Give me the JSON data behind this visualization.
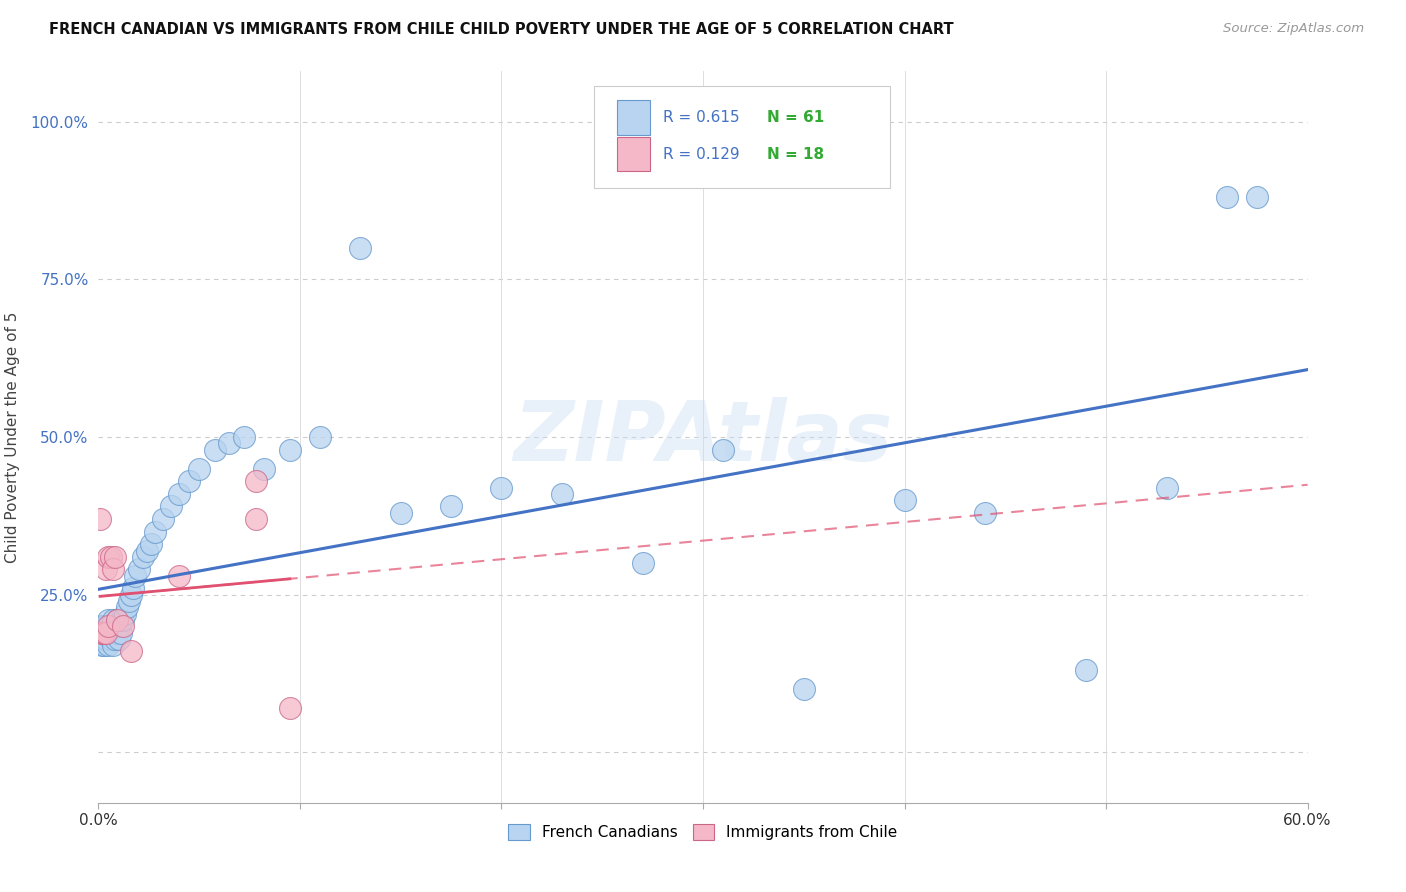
{
  "title": "FRENCH CANADIAN VS IMMIGRANTS FROM CHILE CHILD POVERTY UNDER THE AGE OF 5 CORRELATION CHART",
  "source": "Source: ZipAtlas.com",
  "ylabel_label": "Child Poverty Under the Age of 5",
  "r_blue": 0.615,
  "n_blue": 61,
  "r_pink": 0.129,
  "n_pink": 18,
  "xlim": [
    0.0,
    0.6
  ],
  "ylim": [
    -0.08,
    1.08
  ],
  "xticks": [
    0.0,
    0.1,
    0.2,
    0.3,
    0.4,
    0.5,
    0.6
  ],
  "xtick_labels": [
    "0.0%",
    "",
    "",
    "",
    "",
    "",
    "60.0%"
  ],
  "yticks": [
    0.0,
    0.25,
    0.5,
    0.75,
    1.0
  ],
  "ytick_labels": [
    "",
    "25.0%",
    "50.0%",
    "75.0%",
    "100.0%"
  ],
  "color_blue": "#b8d4f0",
  "color_blue_line": "#4472c4",
  "color_blue_edge": "#6699cc",
  "color_pink": "#f4b8c8",
  "color_pink_line": "#e05070",
  "color_pink_edge": "#cc6688",
  "watermark": "ZIPAtlas",
  "blue_x": [
    0.001,
    0.002,
    0.002,
    0.003,
    0.003,
    0.003,
    0.004,
    0.004,
    0.005,
    0.005,
    0.005,
    0.006,
    0.006,
    0.007,
    0.007,
    0.007,
    0.008,
    0.008,
    0.009,
    0.009,
    0.01,
    0.01,
    0.011,
    0.011,
    0.012,
    0.013,
    0.014,
    0.015,
    0.016,
    0.017,
    0.018,
    0.02,
    0.022,
    0.024,
    0.026,
    0.028,
    0.032,
    0.036,
    0.04,
    0.045,
    0.05,
    0.058,
    0.065,
    0.072,
    0.082,
    0.095,
    0.11,
    0.13,
    0.15,
    0.175,
    0.2,
    0.23,
    0.27,
    0.31,
    0.35,
    0.4,
    0.44,
    0.49,
    0.53,
    0.56,
    0.575
  ],
  "blue_y": [
    0.18,
    0.2,
    0.17,
    0.17,
    0.19,
    0.2,
    0.18,
    0.2,
    0.17,
    0.19,
    0.21,
    0.18,
    0.2,
    0.17,
    0.19,
    0.21,
    0.18,
    0.2,
    0.19,
    0.21,
    0.18,
    0.2,
    0.19,
    0.21,
    0.21,
    0.22,
    0.23,
    0.24,
    0.25,
    0.26,
    0.28,
    0.29,
    0.31,
    0.32,
    0.33,
    0.35,
    0.37,
    0.39,
    0.41,
    0.43,
    0.45,
    0.48,
    0.49,
    0.5,
    0.45,
    0.48,
    0.5,
    0.8,
    0.38,
    0.39,
    0.42,
    0.41,
    0.3,
    0.48,
    0.1,
    0.4,
    0.38,
    0.13,
    0.42,
    0.88,
    0.88
  ],
  "pink_x": [
    0.001,
    0.002,
    0.002,
    0.003,
    0.004,
    0.004,
    0.005,
    0.005,
    0.006,
    0.007,
    0.008,
    0.009,
    0.012,
    0.016,
    0.04,
    0.078,
    0.078,
    0.095
  ],
  "pink_y": [
    0.37,
    0.19,
    0.19,
    0.19,
    0.19,
    0.29,
    0.2,
    0.31,
    0.31,
    0.29,
    0.31,
    0.21,
    0.2,
    0.16,
    0.28,
    0.43,
    0.37,
    0.07
  ]
}
